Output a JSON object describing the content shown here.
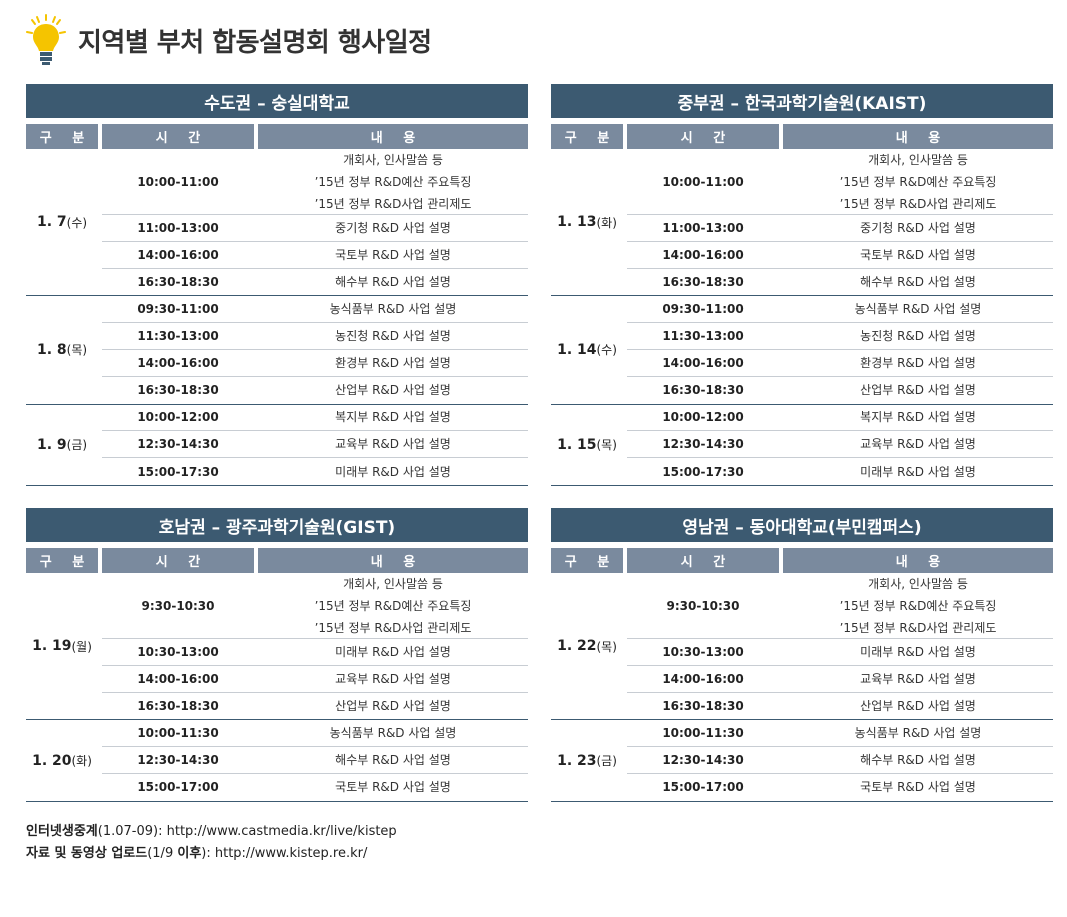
{
  "title": "지역별 부처 합동설명회  행사일정",
  "columns": {
    "category": "구 분",
    "time": "시 간",
    "content": "내 용"
  },
  "panels": [
    {
      "header": "수도권 – 숭실대학교",
      "days": [
        {
          "date": "1. 7",
          "weekday": "(수)",
          "rows": [
            {
              "time": "10:00-11:00",
              "lines": [
                "개회사, 인사말씀 등",
                "’15년 정부 R&D예산 주요특징",
                "’15년 정부 R&D사업 관리제도"
              ]
            },
            {
              "time": "11:00-13:00",
              "lines": [
                "중기청 R&D 사업 설명"
              ]
            },
            {
              "time": "14:00-16:00",
              "lines": [
                "국토부 R&D 사업 설명"
              ]
            },
            {
              "time": "16:30-18:30",
              "lines": [
                "해수부 R&D 사업 설명"
              ]
            }
          ]
        },
        {
          "date": "1. 8",
          "weekday": "(목)",
          "rows": [
            {
              "time": "09:30-11:00",
              "lines": [
                "농식품부 R&D 사업 설명"
              ]
            },
            {
              "time": "11:30-13:00",
              "lines": [
                "농진청 R&D 사업 설명"
              ]
            },
            {
              "time": "14:00-16:00",
              "lines": [
                "환경부 R&D 사업 설명"
              ]
            },
            {
              "time": "16:30-18:30",
              "lines": [
                "산업부 R&D 사업 설명"
              ]
            }
          ]
        },
        {
          "date": "1. 9",
          "weekday": "(금)",
          "rows": [
            {
              "time": "10:00-12:00",
              "lines": [
                "복지부 R&D 사업 설명"
              ]
            },
            {
              "time": "12:30-14:30",
              "lines": [
                "교육부 R&D 사업 설명"
              ]
            },
            {
              "time": "15:00-17:30",
              "lines": [
                "미래부 R&D 사업 설명"
              ]
            }
          ]
        }
      ]
    },
    {
      "header": "중부권 – 한국과학기술원(KAIST)",
      "days": [
        {
          "date": "1. 13",
          "weekday": "(화)",
          "rows": [
            {
              "time": "10:00-11:00",
              "lines": [
                "개회사, 인사말씀 등",
                "’15년 정부 R&D예산 주요특징",
                "’15년 정부 R&D사업 관리제도"
              ]
            },
            {
              "time": "11:00-13:00",
              "lines": [
                "중기청 R&D 사업 설명"
              ]
            },
            {
              "time": "14:00-16:00",
              "lines": [
                "국토부 R&D 사업 설명"
              ]
            },
            {
              "time": "16:30-18:30",
              "lines": [
                "해수부 R&D 사업 설명"
              ]
            }
          ]
        },
        {
          "date": "1. 14",
          "weekday": "(수)",
          "rows": [
            {
              "time": "09:30-11:00",
              "lines": [
                "농식품부 R&D 사업 설명"
              ]
            },
            {
              "time": "11:30-13:00",
              "lines": [
                "농진청 R&D 사업 설명"
              ]
            },
            {
              "time": "14:00-16:00",
              "lines": [
                "환경부 R&D 사업 설명"
              ]
            },
            {
              "time": "16:30-18:30",
              "lines": [
                "산업부 R&D 사업 설명"
              ]
            }
          ]
        },
        {
          "date": "1. 15",
          "weekday": "(목)",
          "rows": [
            {
              "time": "10:00-12:00",
              "lines": [
                "복지부 R&D 사업 설명"
              ]
            },
            {
              "time": "12:30-14:30",
              "lines": [
                "교육부 R&D 사업 설명"
              ]
            },
            {
              "time": "15:00-17:30",
              "lines": [
                "미래부 R&D 사업 설명"
              ]
            }
          ]
        }
      ]
    },
    {
      "header": "호남권 – 광주과학기술원(GIST)",
      "days": [
        {
          "date": "1. 19",
          "weekday": "(월)",
          "rows": [
            {
              "time": "9:30-10:30",
              "lines": [
                "개회사, 인사말씀 등",
                "’15년 정부 R&D예산 주요특징",
                "’15년 정부 R&D사업 관리제도"
              ]
            },
            {
              "time": "10:30-13:00",
              "lines": [
                "미래부 R&D 사업 설명"
              ]
            },
            {
              "time": "14:00-16:00",
              "lines": [
                "교육부 R&D 사업 설명"
              ]
            },
            {
              "time": "16:30-18:30",
              "lines": [
                "산업부  R&D 사업 설명"
              ]
            }
          ]
        },
        {
          "date": "1. 20",
          "weekday": "(화)",
          "rows": [
            {
              "time": "10:00-11:30",
              "lines": [
                "농식품부 R&D 사업 설명"
              ]
            },
            {
              "time": "12:30-14:30",
              "lines": [
                "해수부 R&D 사업 설명"
              ]
            },
            {
              "time": "15:00-17:00",
              "lines": [
                "국토부 R&D 사업 설명"
              ]
            }
          ]
        }
      ]
    },
    {
      "header": "영남권 – 동아대학교(부민캠퍼스)",
      "days": [
        {
          "date": "1. 22",
          "weekday": "(목)",
          "rows": [
            {
              "time": "9:30-10:30",
              "lines": [
                "개회사, 인사말씀 등",
                "’15년 정부 R&D예산 주요특징",
                "’15년 정부 R&D사업 관리제도"
              ]
            },
            {
              "time": "10:30-13:00",
              "lines": [
                "미래부 R&D 사업 설명"
              ]
            },
            {
              "time": "14:00-16:00",
              "lines": [
                "교육부 R&D 사업 설명"
              ]
            },
            {
              "time": "16:30-18:30",
              "lines": [
                "산업부  R&D 사업 설명"
              ]
            }
          ]
        },
        {
          "date": "1. 23",
          "weekday": "(금)",
          "rows": [
            {
              "time": "10:00-11:30",
              "lines": [
                "농식품부 R&D 사업 설명"
              ]
            },
            {
              "time": "12:30-14:30",
              "lines": [
                "해수부 R&D 사업 설명"
              ]
            },
            {
              "time": "15:00-17:00",
              "lines": [
                "국토부 R&D 사업 설명"
              ]
            }
          ]
        }
      ]
    }
  ],
  "footer": {
    "live": {
      "label": "인터넷생중계",
      "note": "(1.07-09)",
      "url": ": http://www.castmedia.kr/live/kistep"
    },
    "upload": {
      "label": "자료 및 동영상 업로드",
      "note_open": "(1/9 ",
      "note_bold": "이후",
      "note_close": ")",
      "url": ": http://www.kistep.re.kr/"
    }
  },
  "icons": {
    "title": "lightbulb-icon"
  },
  "colors": {
    "header": "#3c5a71",
    "subheader": "#7a8a9e",
    "bulb": "#f5c400"
  }
}
